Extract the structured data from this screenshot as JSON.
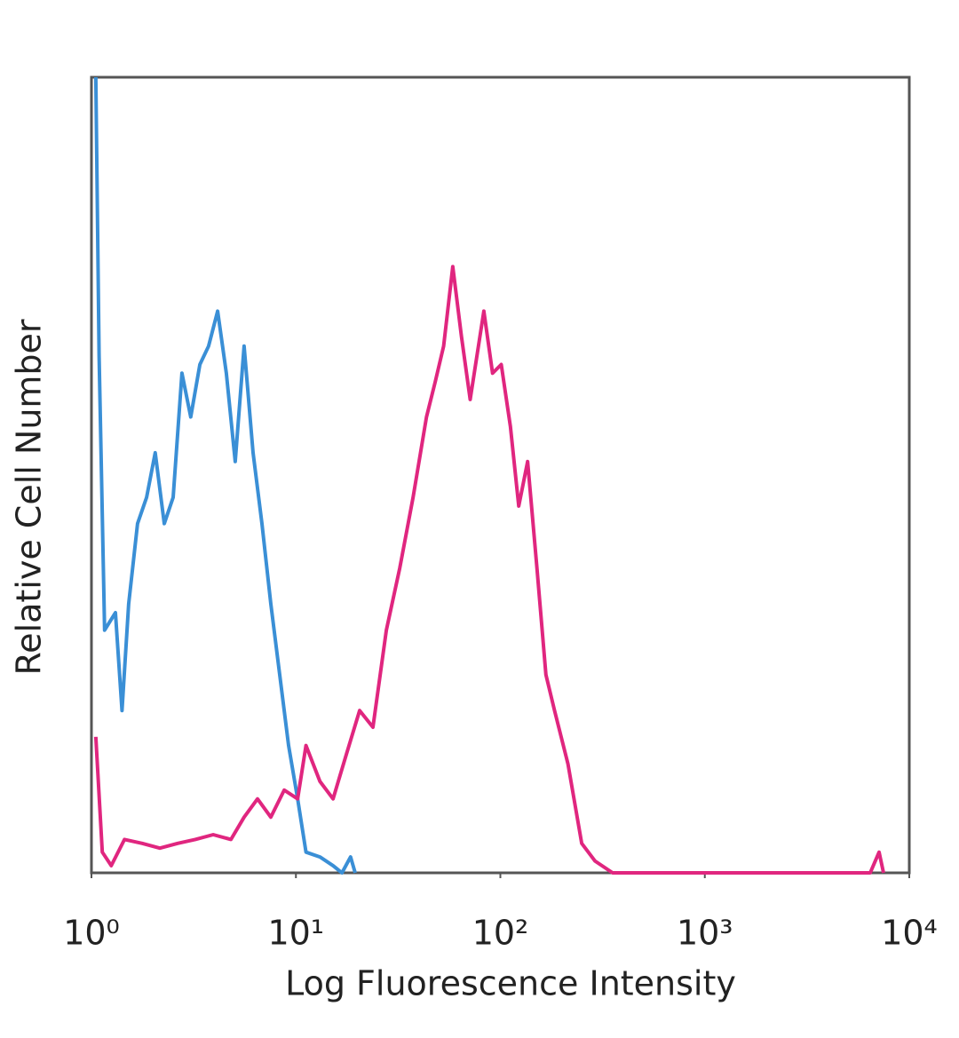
{
  "chart_data": {
    "type": "line",
    "x_label": "Log Fluorescence Intensity",
    "y_label": "Relative Cell Number",
    "xscale": "log",
    "xlim": [
      1,
      10000
    ],
    "xticks": [
      {
        "value": 1,
        "label": "10⁰"
      },
      {
        "value": 10,
        "label": "10¹"
      },
      {
        "value": 100,
        "label": "10²"
      },
      {
        "value": 1000,
        "label": "10³"
      },
      {
        "value": 10000,
        "label": "10⁴"
      }
    ],
    "ylim": [
      0,
      100
    ],
    "series": [
      {
        "color": "#3a8fd6",
        "x": [
          1.05,
          1.09,
          1.16,
          1.31,
          1.41,
          1.52,
          1.68,
          1.86,
          2.05,
          2.27,
          2.51,
          2.77,
          3.06,
          3.39,
          3.74,
          4.14,
          4.57,
          5.05,
          5.58,
          6.17,
          6.82,
          7.54,
          8.33,
          9.21,
          10.2,
          11.2,
          13.1,
          15.2,
          16.8,
          18.5,
          19.5
        ],
        "values": [
          100,
          65,
          30.5,
          32.7,
          20.4,
          33.8,
          43.9,
          47.2,
          52.8,
          43.9,
          47.2,
          62.8,
          57.3,
          63.9,
          66.2,
          70.6,
          62.8,
          51.7,
          66.2,
          52.8,
          43.9,
          33.8,
          24.9,
          16,
          9.3,
          2.6,
          2,
          0.9,
          0,
          2,
          0
        ]
      },
      {
        "color": "#e0267f",
        "x": [
          1.05,
          1.13,
          1.25,
          1.45,
          1.77,
          2.16,
          2.64,
          3.22,
          3.94,
          4.81,
          5.58,
          6.49,
          7.54,
          8.77,
          10.2,
          11.2,
          13.1,
          15.2,
          17.6,
          20.5,
          23.8,
          27.7,
          32.2,
          37.4,
          43.5,
          48,
          52.8,
          58.5,
          64.5,
          71.2,
          83,
          91.6,
          101,
          112,
          123,
          136,
          151,
          167,
          184,
          214,
          250,
          290,
          354,
          6440,
          7115,
          7480
        ],
        "values": [
          17.1,
          2.6,
          0.9,
          4.2,
          3.7,
          3.1,
          3.7,
          4.2,
          4.8,
          4.2,
          7,
          9.3,
          7,
          10.4,
          9.3,
          16,
          11.5,
          9.3,
          14.8,
          20.4,
          18.3,
          30.5,
          38.3,
          47.2,
          57.3,
          61.7,
          66.2,
          76.2,
          67.4,
          59.5,
          70.6,
          62.8,
          63.9,
          56.1,
          46.1,
          51.7,
          38.3,
          24.9,
          20.4,
          13.7,
          3.7,
          1.5,
          0,
          0,
          2.6,
          0
        ]
      }
    ]
  }
}
